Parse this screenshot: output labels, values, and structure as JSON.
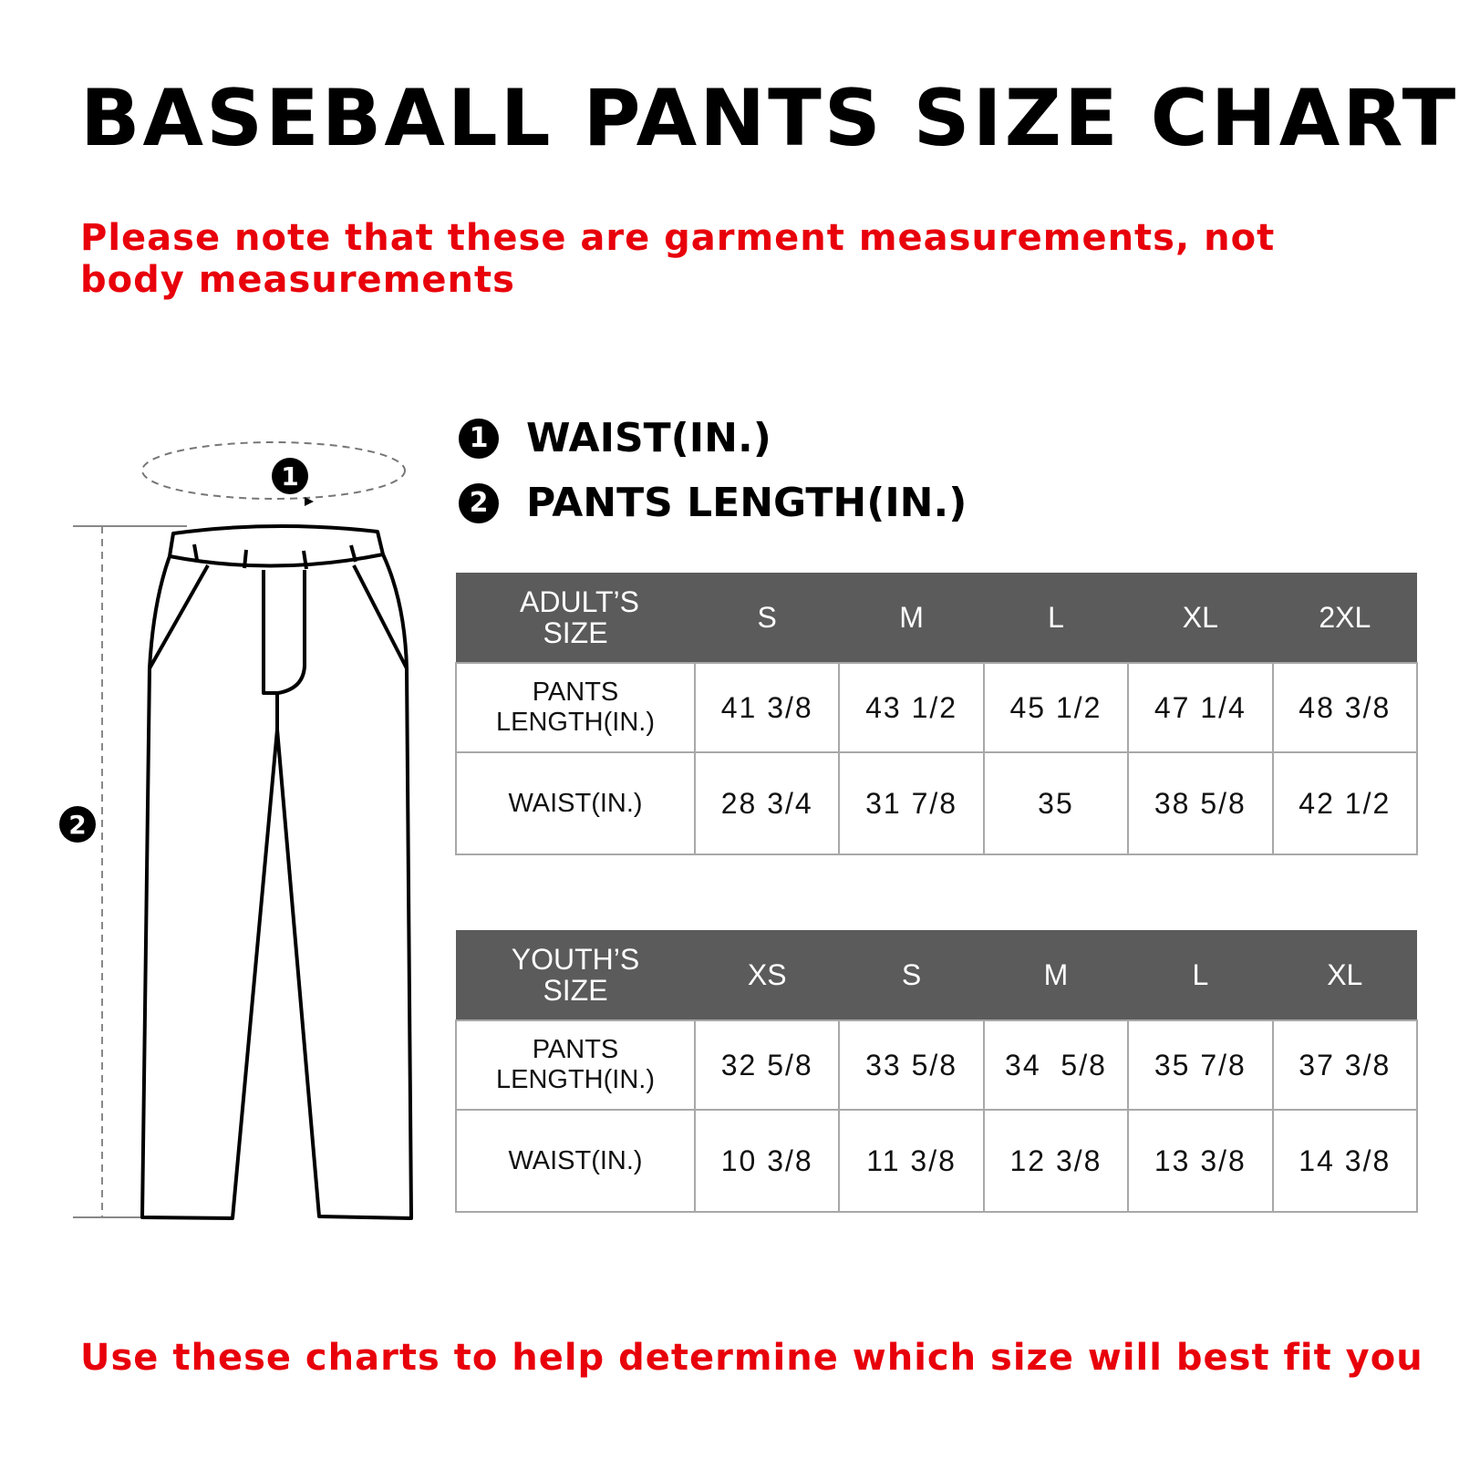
{
  "title": "BASEBALL PANTS SIZE CHART",
  "note": "Please note that these are garment measurements, not body measurements",
  "legend": [
    {
      "num": "1",
      "label": "WAIST(IN.)"
    },
    {
      "num": "2",
      "label": "PANTS LENGTH(IN.)"
    }
  ],
  "diagram": {
    "waist_marker": "1",
    "length_marker": "2"
  },
  "adult": {
    "header": [
      "ADULT’S SIZE",
      "S",
      "M",
      "L",
      "XL",
      "2XL"
    ],
    "rows": [
      {
        "label": "PANTS LENGTH(IN.)",
        "values": [
          "41 3/8",
          "43 1/2",
          "45 1/2",
          "47 1/4",
          "48 3/8"
        ]
      },
      {
        "label": "WAIST(IN.)",
        "values": [
          "28 3/4",
          "31 7/8",
          "35",
          "38 5/8",
          "42 1/2"
        ]
      }
    ]
  },
  "youth": {
    "header": [
      "YOUTH’S SIZE",
      "XS",
      "S",
      "M",
      "L",
      "XL"
    ],
    "rows": [
      {
        "label": "PANTS LENGTH(IN.)",
        "values": [
          "32 5/8",
          "33 5/8",
          "34  5/8",
          "35 7/8",
          "37 3/8"
        ]
      },
      {
        "label": "WAIST(IN.)",
        "values": [
          "10 3/8",
          "11 3/8",
          "12 3/8",
          "13 3/8",
          "14 3/8"
        ]
      }
    ]
  },
  "footer": "Use these charts to help determine which size will best fit you",
  "colors": {
    "accent_red": "#e8000b",
    "header_gray": "#5b5b5b"
  }
}
